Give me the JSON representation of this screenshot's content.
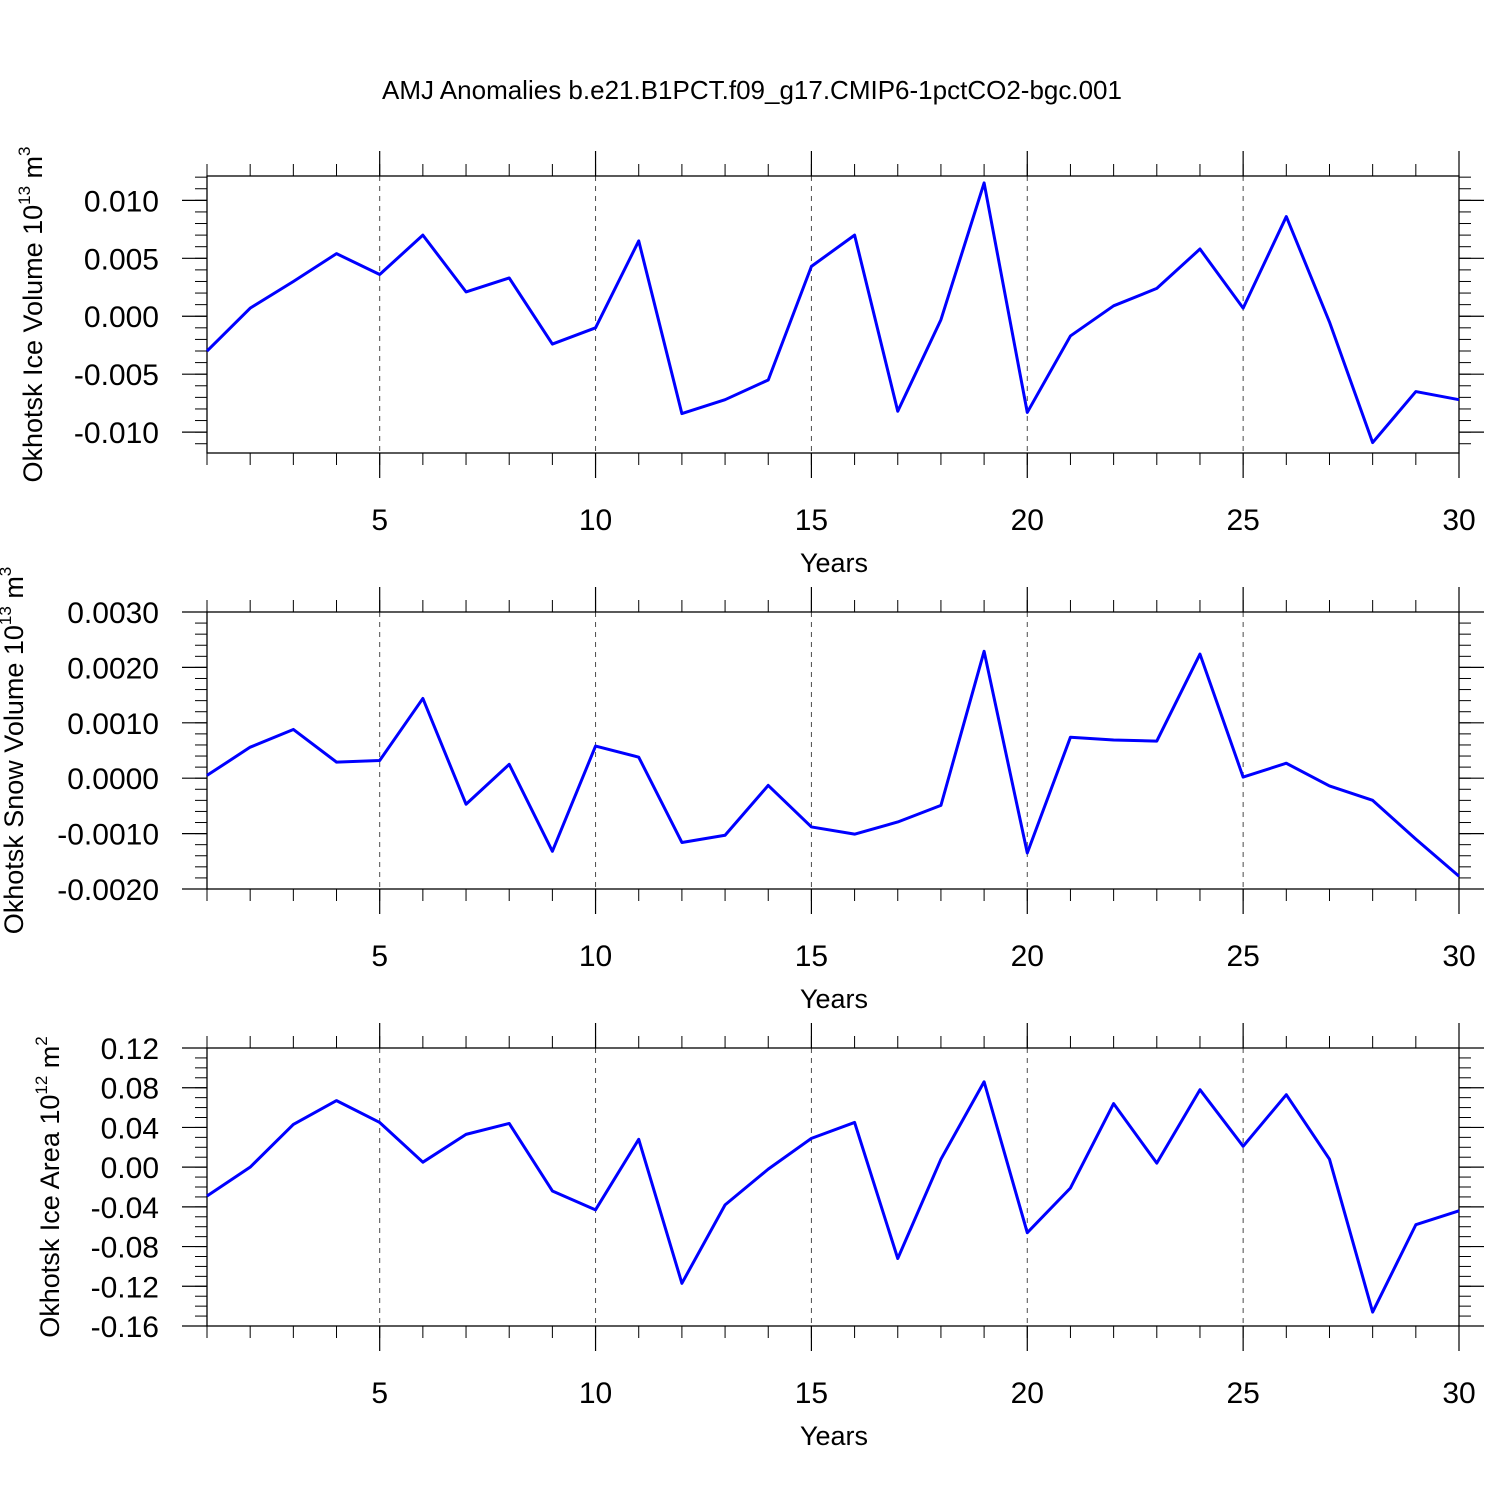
{
  "chart_data": [
    {
      "type": "line",
      "title": "AMJ Anomalies b.e21.B1PCT.f09_g17.CMIP6-1pctCO2-bgc.001",
      "xlabel": "Years",
      "ylabel": {
        "text": "Okhotsk Ice Volume 10",
        "exponent": "13",
        "unit": " m",
        "unit_exponent": "3"
      },
      "x": [
        1,
        2,
        3,
        4,
        5,
        6,
        7,
        8,
        9,
        10,
        11,
        12,
        13,
        14,
        15,
        16,
        17,
        18,
        19,
        20,
        21,
        22,
        23,
        24,
        25,
        26,
        27,
        28,
        29,
        30
      ],
      "series": [
        {
          "color": "#0000ff",
          "values": [
            -0.003,
            0.0007,
            0.003,
            0.0054,
            0.0036,
            0.007,
            0.0021,
            0.0033,
            -0.0024,
            -0.001,
            0.0065,
            -0.0084,
            -0.0072,
            -0.0055,
            0.0043,
            0.007,
            -0.0082,
            -0.0003,
            0.0115,
            -0.0083,
            -0.0017,
            0.0009,
            0.0024,
            0.0058,
            0.0007,
            0.0086,
            -0.0005,
            -0.0109,
            -0.0065,
            -0.0072
          ]
        }
      ],
      "xlim": [
        1,
        30
      ],
      "xticks": [
        5,
        10,
        15,
        20,
        25,
        30
      ],
      "ylim": [
        -0.0118,
        0.0121
      ],
      "yticks": [
        {
          "value": 0.01,
          "label": "0.010"
        },
        {
          "value": 0.005,
          "label": "0.005"
        },
        {
          "value": 0,
          "label": "0.000"
        },
        {
          "value": -0.005,
          "label": "-0.005"
        },
        {
          "value": -0.01,
          "label": "-0.010"
        }
      ],
      "grid": "x-dashed"
    },
    {
      "type": "line",
      "xlabel": "Years",
      "ylabel": {
        "text": "Okhotsk Snow Volume 10",
        "exponent": "13",
        "unit": " m",
        "unit_exponent": "3"
      },
      "x": [
        1,
        2,
        3,
        4,
        5,
        6,
        7,
        8,
        9,
        10,
        11,
        12,
        13,
        14,
        15,
        16,
        17,
        18,
        19,
        20,
        21,
        22,
        23,
        24,
        25,
        26,
        27,
        28,
        29,
        30
      ],
      "series": [
        {
          "color": "#0000ff",
          "values": [
            5e-05,
            0.00056,
            0.00088,
            0.00029,
            0.00032,
            0.00144,
            -0.00047,
            0.00025,
            -0.00132,
            0.00058,
            0.00038,
            -0.00116,
            -0.00103,
            -0.00013,
            -0.00088,
            -0.00101,
            -0.00079,
            -0.00049,
            0.00229,
            -0.00135,
            0.00074,
            0.00069,
            0.00067,
            0.00224,
            2e-05,
            0.00027,
            -0.00014,
            -0.0004,
            -0.0011,
            -0.00177
          ]
        }
      ],
      "xlim": [
        1,
        30
      ],
      "xticks": [
        5,
        10,
        15,
        20,
        25,
        30
      ],
      "ylim": [
        -0.002,
        0.003
      ],
      "yticks": [
        {
          "value": 0.003,
          "label": "0.0030"
        },
        {
          "value": 0.002,
          "label": "0.0020"
        },
        {
          "value": 0.001,
          "label": "0.0010"
        },
        {
          "value": 0,
          "label": "0.0000"
        },
        {
          "value": -0.001,
          "label": "-0.0010"
        },
        {
          "value": -0.002,
          "label": "-0.0020"
        }
      ],
      "grid": "x-dashed"
    },
    {
      "type": "line",
      "xlabel": "Years",
      "ylabel": {
        "text": "Okhotsk Ice Area 10",
        "exponent": "12",
        "unit": " m",
        "unit_exponent": "2"
      },
      "x": [
        1,
        2,
        3,
        4,
        5,
        6,
        7,
        8,
        9,
        10,
        11,
        12,
        13,
        14,
        15,
        16,
        17,
        18,
        19,
        20,
        21,
        22,
        23,
        24,
        25,
        26,
        27,
        28,
        29,
        30
      ],
      "series": [
        {
          "color": "#0000ff",
          "values": [
            -0.029,
            0.0,
            0.043,
            0.067,
            0.045,
            0.005,
            0.033,
            0.044,
            -0.024,
            -0.043,
            0.028,
            -0.117,
            -0.038,
            -0.002,
            0.029,
            0.045,
            -0.092,
            0.008,
            0.086,
            -0.066,
            -0.021,
            0.064,
            0.004,
            0.078,
            0.021,
            0.073,
            0.008,
            -0.146,
            -0.058,
            -0.044
          ]
        }
      ],
      "xlim": [
        1,
        30
      ],
      "xticks": [
        5,
        10,
        15,
        20,
        25,
        30
      ],
      "ylim": [
        -0.16,
        0.12
      ],
      "yticks": [
        0.12,
        {
          "value": 0.08,
          "label": "0.08"
        },
        {
          "value": 0.04,
          "label": "0.04"
        },
        {
          "value": 0,
          "label": "0.00"
        },
        -0.04,
        -0.08,
        -0.12,
        -0.16
      ],
      "grid": "x-dashed"
    }
  ]
}
